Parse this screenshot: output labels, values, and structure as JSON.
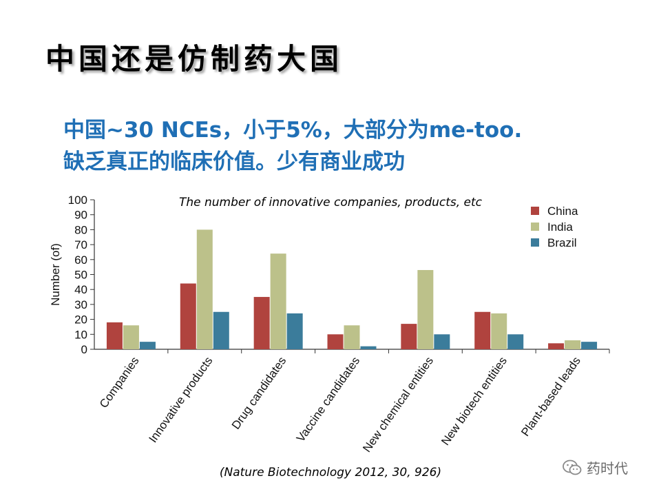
{
  "slide": {
    "title": "中国还是仿制药大国",
    "subtitle_line1": "中国~30 NCEs，小于5%，大部分为me-too.",
    "subtitle_line2": "缺乏真正的临床价值。少有商业成功",
    "chart_caption": "The number of innovative companies, products, etc",
    "source_citation": "(Nature Biotechnology 2012, 30, 926)",
    "watermark": "药时代",
    "colors": {
      "subtitle_text": "#1f6fb5"
    }
  },
  "chart_data": {
    "type": "bar",
    "title": "",
    "ylabel": "Number (of)",
    "xlabel": "",
    "ylim": [
      0,
      100
    ],
    "yticks": [
      0,
      10,
      20,
      30,
      40,
      50,
      60,
      70,
      80,
      90,
      100
    ],
    "grid": false,
    "legend_position": "top-right",
    "categories": [
      "Companies",
      "Innovative products",
      "Drug candidates",
      "Vaccine candidates",
      "New chemical entities",
      "New biotech entities",
      "Plant-based leads"
    ],
    "series": [
      {
        "name": "China",
        "color": "#b0433e",
        "values": [
          18,
          44,
          35,
          10,
          17,
          25,
          4
        ]
      },
      {
        "name": "India",
        "color": "#bcc18a",
        "values": [
          16,
          80,
          64,
          16,
          53,
          24,
          6
        ]
      },
      {
        "name": "Brazil",
        "color": "#3b7c9b",
        "values": [
          5,
          25,
          24,
          2,
          10,
          10,
          5
        ]
      }
    ]
  }
}
